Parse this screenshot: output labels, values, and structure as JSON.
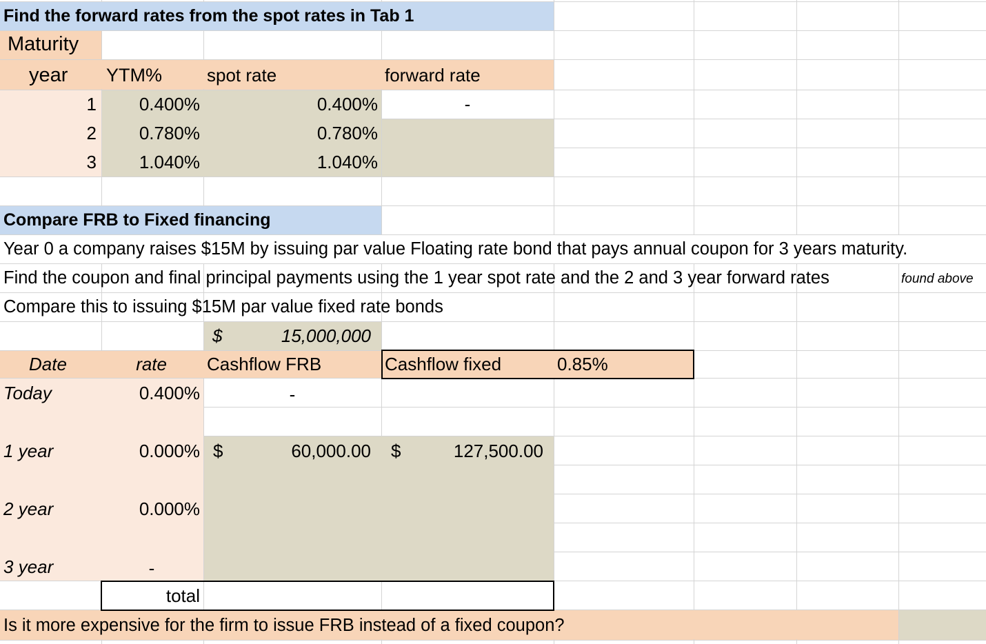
{
  "colors": {
    "blue_header": "#c6d9f0",
    "peach": "#f8d5b8",
    "light_peach": "#fbe9dd",
    "tan": "#ddd9c6",
    "gridline": "#d4d4d4"
  },
  "section1": {
    "title": "Find the forward rates from the spot rates in Tab 1",
    "maturity_label": "Maturity",
    "headers": {
      "year": "year",
      "ytm": "YTM%",
      "spot": "spot rate",
      "forward": "forward rate"
    },
    "rows": [
      {
        "year": "1",
        "ytm": "0.400%",
        "spot": "0.400%",
        "forward": "-"
      },
      {
        "year": "2",
        "ytm": "0.780%",
        "spot": "0.780%",
        "forward": ""
      },
      {
        "year": "3",
        "ytm": "1.040%",
        "spot": "1.040%",
        "forward": ""
      }
    ]
  },
  "section2": {
    "title": "Compare FRB to Fixed financing",
    "line1": "Year 0 a company raises $15M by issuing par value Floating rate bond that pays annual coupon for 3 years maturity.",
    "line2": "Find the coupon and final principal payments using the 1 year spot rate and the 2 and 3 year forward rates",
    "line2_note": "found above",
    "line3": "Compare this to issuing $15M par value fixed rate bonds",
    "par_currency": "$",
    "par_value": "15,000,000",
    "headers": {
      "date": "Date",
      "rate": "rate",
      "cf_frb": "Cashflow FRB",
      "cf_fixed": "Cashflow fixed",
      "fixed_rate": "0.85%"
    },
    "rows": [
      {
        "date": "Today",
        "rate": "0.400%",
        "frb_currency": "",
        "frb": "-",
        "fixed_currency": "",
        "fixed": ""
      },
      {
        "date": "1 year",
        "rate": "0.000%",
        "frb_currency": "$",
        "frb": "60,000.00",
        "fixed_currency": "$",
        "fixed": "127,500.00"
      },
      {
        "date": "2 year",
        "rate": "0.000%",
        "frb_currency": "",
        "frb": "",
        "fixed_currency": "",
        "fixed": ""
      },
      {
        "date": "3 year",
        "rate": "-",
        "frb_currency": "",
        "frb": "",
        "fixed_currency": "",
        "fixed": ""
      }
    ],
    "total_label": "total",
    "question": "Is it more expensive for the firm to issue FRB instead of a fixed coupon?"
  }
}
